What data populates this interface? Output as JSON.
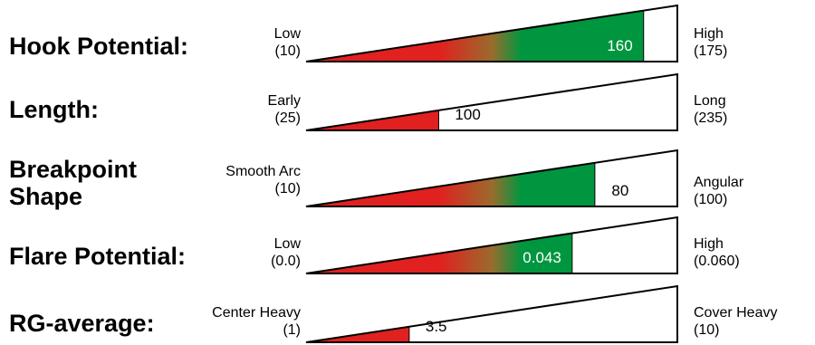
{
  "colors": {
    "low": "#e0211f",
    "mid": "#9b6b2d",
    "high": "#00963f",
    "outline": "#000000"
  },
  "chart_data": [
    {
      "type": "bar",
      "title": "Hook Potential:",
      "title_lines": [
        "Hook Potential:"
      ],
      "min": 10,
      "max": 175,
      "value": 160,
      "value_label": "160",
      "low_label": "Low",
      "low_value": "(10)",
      "high_label": "High",
      "high_value": "(175)"
    },
    {
      "type": "bar",
      "title": "Length:",
      "title_lines": [
        "Length:"
      ],
      "min": 25,
      "max": 235,
      "value": 100,
      "value_label": "100",
      "low_label": "Early",
      "low_value": "(25)",
      "high_label": "Long",
      "high_value": "(235)"
    },
    {
      "type": "bar",
      "title": "Breakpoint Shape",
      "title_lines": [
        "Breakpoint",
        "Shape"
      ],
      "min": 10,
      "max": 100,
      "value": 80,
      "value_label": "80",
      "low_label": "Smooth Arc",
      "low_value": "(10)",
      "high_label": "Angular",
      "high_value": "(100)"
    },
    {
      "type": "bar",
      "title": "Flare Potential:",
      "title_lines": [
        "Flare Potential:"
      ],
      "min": 0.0,
      "max": 0.06,
      "value": 0.043,
      "value_label": "0.043",
      "low_label": "Low",
      "low_value": "(0.0)",
      "high_label": "High",
      "high_value": "(0.060)"
    },
    {
      "type": "bar",
      "title": "RG-average:",
      "title_lines": [
        "RG-average:"
      ],
      "min": 1,
      "max": 10,
      "value": 3.5,
      "value_label": "3.5",
      "low_label": "Center Heavy",
      "low_value": "(1)",
      "high_label": "Cover Heavy",
      "high_value": "(10)"
    }
  ]
}
